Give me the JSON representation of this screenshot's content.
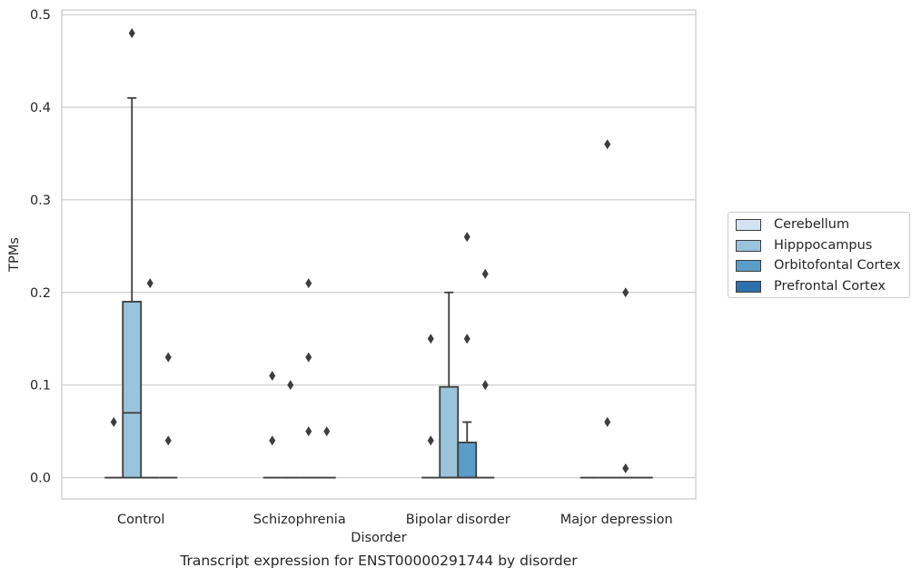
{
  "chart_data": {
    "type": "box",
    "title": "Transcript expression for ENST00000291744 by disorder",
    "xlabel": "Disorder",
    "ylabel": "TPMs",
    "ylim": [
      -0.023,
      0.505
    ],
    "yticks": [
      0.0,
      0.1,
      0.2,
      0.3,
      0.4,
      0.5
    ],
    "ytick_labels": [
      "0.0",
      "0.1",
      "0.2",
      "0.3",
      "0.4",
      "0.5"
    ],
    "categories": [
      "Control",
      "Schizophrenia",
      "Bipolar disorder",
      "Major depression"
    ],
    "grid": true,
    "legend_position": "right",
    "series": [
      {
        "name": "Cerebellum",
        "color": "#d4e3f2",
        "boxes": [
          {
            "category": "Control",
            "q1": 0,
            "median": 0,
            "q3": 0,
            "whislo": 0,
            "whishi": 0,
            "fliers": [
              0.06
            ]
          },
          {
            "category": "Schizophrenia",
            "q1": 0,
            "median": 0,
            "q3": 0,
            "whislo": 0,
            "whishi": 0,
            "fliers": [
              0.11,
              0.04
            ]
          },
          {
            "category": "Bipolar disorder",
            "q1": 0,
            "median": 0,
            "q3": 0,
            "whislo": 0,
            "whishi": 0,
            "fliers": [
              0.15,
              0.04
            ]
          },
          {
            "category": "Major depression",
            "q1": 0,
            "median": 0,
            "q3": 0,
            "whislo": 0,
            "whishi": 0,
            "fliers": []
          }
        ]
      },
      {
        "name": "Hipppocampus",
        "color": "#9ac3dc",
        "boxes": [
          {
            "category": "Control",
            "q1": 0,
            "median": 0.07,
            "q3": 0.19,
            "whislo": 0,
            "whishi": 0.41,
            "fliers": [
              0.48
            ]
          },
          {
            "category": "Schizophrenia",
            "q1": 0,
            "median": 0,
            "q3": 0,
            "whislo": 0,
            "whishi": 0,
            "fliers": [
              0.1
            ]
          },
          {
            "category": "Bipolar disorder",
            "q1": 0,
            "median": 0,
            "q3": 0.098,
            "whislo": 0,
            "whishi": 0.2,
            "fliers": []
          },
          {
            "category": "Major depression",
            "q1": 0,
            "median": 0,
            "q3": 0,
            "whislo": 0,
            "whishi": 0,
            "fliers": [
              0.36,
              0.06
            ]
          }
        ]
      },
      {
        "name": "Orbitofontal Cortex",
        "color": "#5a9dc8",
        "boxes": [
          {
            "category": "Control",
            "q1": 0,
            "median": 0,
            "q3": 0,
            "whislo": 0,
            "whishi": 0,
            "fliers": [
              0.21
            ]
          },
          {
            "category": "Schizophrenia",
            "q1": 0,
            "median": 0,
            "q3": 0,
            "whislo": 0,
            "whishi": 0,
            "fliers": [
              0.21,
              0.13,
              0.05
            ]
          },
          {
            "category": "Bipolar disorder",
            "q1": 0,
            "median": 0,
            "q3": 0.038,
            "whislo": 0,
            "whishi": 0.06,
            "fliers": [
              0.26,
              0.15
            ]
          },
          {
            "category": "Major depression",
            "q1": 0,
            "median": 0,
            "q3": 0,
            "whislo": 0,
            "whishi": 0,
            "fliers": [
              0.2,
              0.01
            ]
          }
        ]
      },
      {
        "name": "Prefrontal Cortex",
        "color": "#2e6fad",
        "boxes": [
          {
            "category": "Control",
            "q1": 0,
            "median": 0,
            "q3": 0,
            "whislo": 0,
            "whishi": 0,
            "fliers": [
              0.13,
              0.04
            ]
          },
          {
            "category": "Schizophrenia",
            "q1": 0,
            "median": 0,
            "q3": 0,
            "whislo": 0,
            "whishi": 0,
            "fliers": [
              0.05
            ]
          },
          {
            "category": "Bipolar disorder",
            "q1": 0,
            "median": 0,
            "q3": 0,
            "whislo": 0,
            "whishi": 0,
            "fliers": [
              0.22,
              0.1
            ]
          },
          {
            "category": "Major depression",
            "q1": 0,
            "median": 0,
            "q3": 0,
            "whislo": 0,
            "whishi": 0,
            "fliers": []
          }
        ]
      }
    ]
  },
  "legend": {
    "items": [
      {
        "label": "Cerebellum",
        "color": "#d4e3f2"
      },
      {
        "label": "Hipppocampus",
        "color": "#9ac3dc"
      },
      {
        "label": "Orbitofontal Cortex",
        "color": "#5a9dc8"
      },
      {
        "label": "Prefrontal Cortex",
        "color": "#2e6fad"
      }
    ]
  }
}
